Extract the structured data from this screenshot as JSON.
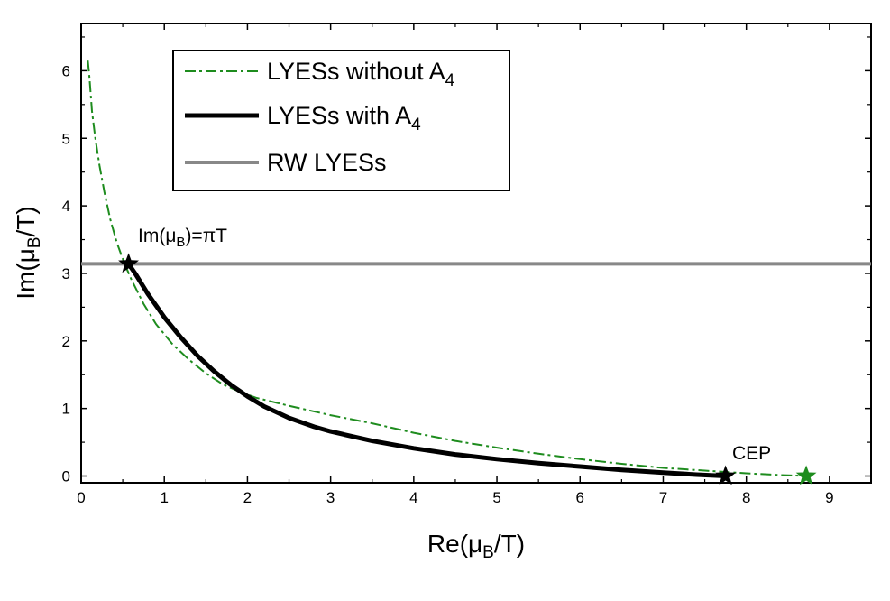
{
  "chart_data": {
    "type": "line",
    "xlabel": "Re(μ_B/T)",
    "ylabel": "Im(μ_B/T)",
    "xlim": [
      0,
      9.5
    ],
    "ylim": [
      -0.1,
      6.7
    ],
    "x_ticks": [
      0,
      1,
      2,
      3,
      4,
      5,
      6,
      7,
      8,
      9
    ],
    "y_ticks": [
      0,
      1,
      2,
      3,
      4,
      5,
      6
    ],
    "grid": false,
    "legend_position": "top-left",
    "series": [
      {
        "name": "LYESs without A4",
        "style": "dash-dot",
        "color": "#1e8c1e",
        "points": [
          [
            0.08,
            6.15
          ],
          [
            0.1,
            5.9
          ],
          [
            0.13,
            5.4
          ],
          [
            0.17,
            5.0
          ],
          [
            0.22,
            4.6
          ],
          [
            0.28,
            4.2
          ],
          [
            0.35,
            3.8
          ],
          [
            0.43,
            3.45
          ],
          [
            0.52,
            3.15
          ],
          [
            0.6,
            2.92
          ],
          [
            0.75,
            2.55
          ],
          [
            0.9,
            2.25
          ],
          [
            1.1,
            1.95
          ],
          [
            1.3,
            1.72
          ],
          [
            1.5,
            1.52
          ],
          [
            1.7,
            1.36
          ],
          [
            1.9,
            1.25
          ],
          [
            2.1,
            1.16
          ],
          [
            2.5,
            1.04
          ],
          [
            3.0,
            0.9
          ],
          [
            3.5,
            0.78
          ],
          [
            4.0,
            0.64
          ],
          [
            4.5,
            0.52
          ],
          [
            5.0,
            0.42
          ],
          [
            5.5,
            0.33
          ],
          [
            6.0,
            0.25
          ],
          [
            6.5,
            0.18
          ],
          [
            7.0,
            0.12
          ],
          [
            7.5,
            0.08
          ],
          [
            8.0,
            0.04
          ],
          [
            8.4,
            0.015
          ],
          [
            8.72,
            0.0
          ]
        ]
      },
      {
        "name": "LYESs with A4",
        "style": "solid",
        "color": "#000000",
        "points": [
          [
            0.57,
            3.14
          ],
          [
            0.65,
            3.0
          ],
          [
            0.8,
            2.7
          ],
          [
            1.0,
            2.35
          ],
          [
            1.2,
            2.05
          ],
          [
            1.4,
            1.78
          ],
          [
            1.6,
            1.55
          ],
          [
            1.8,
            1.35
          ],
          [
            2.0,
            1.18
          ],
          [
            2.2,
            1.03
          ],
          [
            2.5,
            0.86
          ],
          [
            2.8,
            0.73
          ],
          [
            3.0,
            0.66
          ],
          [
            3.5,
            0.52
          ],
          [
            4.0,
            0.41
          ],
          [
            4.5,
            0.32
          ],
          [
            5.0,
            0.25
          ],
          [
            5.5,
            0.19
          ],
          [
            6.0,
            0.14
          ],
          [
            6.5,
            0.09
          ],
          [
            7.0,
            0.05
          ],
          [
            7.4,
            0.02
          ],
          [
            7.75,
            0.0
          ]
        ]
      },
      {
        "name": "RW LYESs",
        "style": "solid",
        "color": "#888888",
        "points": [
          [
            0,
            3.1416
          ],
          [
            9.5,
            3.1416
          ]
        ]
      }
    ],
    "markers": [
      {
        "label": "Im(μ_B)=πT",
        "x": 0.57,
        "y": 3.1416,
        "color": "#000000"
      },
      {
        "label": "CEP",
        "x": 7.75,
        "y": 0.0,
        "color": "#000000"
      },
      {
        "label": "",
        "x": 8.72,
        "y": 0.0,
        "color": "#1e8c1e"
      }
    ]
  }
}
